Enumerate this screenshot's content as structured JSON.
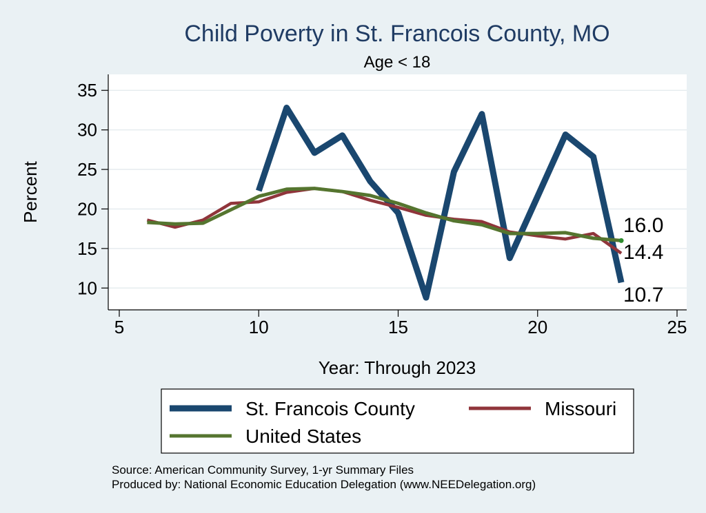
{
  "chart_data": {
    "type": "line",
    "title": "Child Poverty in St. Francois County, MO",
    "subtitle": "Age < 18",
    "xlabel": "Year: Through 2023",
    "ylabel": "Percent",
    "xlim": [
      5,
      25
    ],
    "ylim": [
      7.5,
      36.5
    ],
    "xticks": [
      "5",
      "10",
      "15",
      "20",
      "25"
    ],
    "yticks": [
      "10",
      "15",
      "20",
      "25",
      "30",
      "35"
    ],
    "grid": true,
    "legend_position": "bottom",
    "series": [
      {
        "name": "St. Francois County",
        "color": "#1a476f",
        "x": [
          10,
          11,
          12,
          13,
          14,
          15,
          16,
          17,
          18,
          19,
          20,
          21,
          22,
          23
        ],
        "values": [
          22.3,
          32.8,
          27.1,
          29.3,
          23.5,
          19.5,
          8.8,
          24.7,
          32.0,
          13.8,
          21.6,
          29.4,
          26.6,
          10.7
        ]
      },
      {
        "name": "Missouri",
        "color": "#90353b",
        "x": [
          6,
          7,
          8,
          9,
          10,
          11,
          12,
          13,
          14,
          15,
          16,
          17,
          18,
          19,
          20,
          21,
          22,
          23
        ],
        "values": [
          18.6,
          17.7,
          18.6,
          20.7,
          20.9,
          22.1,
          22.6,
          22.2,
          21.1,
          20.2,
          19.2,
          18.7,
          18.4,
          17.1,
          16.6,
          16.2,
          16.9,
          14.4
        ]
      },
      {
        "name": "United States",
        "color": "#55752f",
        "x": [
          6,
          7,
          8,
          9,
          10,
          11,
          12,
          13,
          14,
          15,
          16,
          17,
          18,
          19,
          20,
          21,
          22,
          23
        ],
        "values": [
          18.3,
          18.1,
          18.2,
          19.9,
          21.6,
          22.5,
          22.6,
          22.2,
          21.7,
          20.7,
          19.5,
          18.5,
          18.0,
          16.9,
          16.9,
          17.0,
          16.3,
          16.0
        ]
      }
    ],
    "end_labels": [
      {
        "text": "16.0",
        "series": "United States"
      },
      {
        "text": "14.4",
        "series": "Missouri"
      },
      {
        "text": "10.7",
        "series": "St. Francois County"
      }
    ],
    "source_lines": [
      "Source: American Community Survey, 1-yr Summary Files",
      "Produced by: National Economic Education Delegation (www.NEEDelegation.org)"
    ]
  }
}
